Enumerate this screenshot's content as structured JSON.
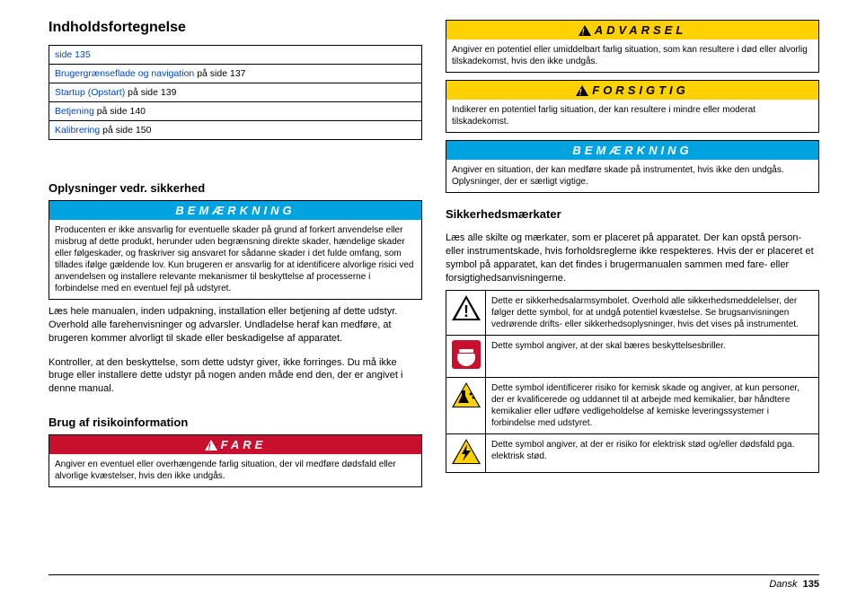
{
  "colors": {
    "notice": "#00a3e0",
    "danger": "#c8102e",
    "warning": "#ffd100",
    "caution": "#ffd100",
    "link": "#0047c2"
  },
  "toc": {
    "title": "Indholdsfortegnelse",
    "rows": [
      {
        "link": "",
        "rest": "side 135"
      },
      {
        "link": "Brugergrænseflade og navigation",
        "rest": " på side 137"
      },
      {
        "link": "Startup (Opstart)",
        "rest": " på side 139"
      },
      {
        "link": "Betjening",
        "rest": " på side 140"
      },
      {
        "link": "Kalibrering",
        "rest": " på side 150"
      }
    ]
  },
  "safety_heading": "Oplysninger vedr. sikkerhed",
  "notice_label": "BEMÆRKNING",
  "notice_body": "Producenten er ikke ansvarlig for eventuelle skader på grund af forkert anvendelse eller misbrug af dette produkt, herunder uden begrænsning direkte skader, hændelige skader eller følgeskader, og fraskriver sig ansvaret for sådanne skader i det fulde omfang, som tillades ifølge gældende lov. Kun brugeren er ansvarlig for at identificere alvorlige risici ved anvendelsen og installere relevante mekanismer til beskyttelse af processerne i forbindelse med en eventuel fejl på udstyret.",
  "p1": "Læs hele manualen, inden udpakning, installation eller betjening af dette udstyr. Overhold alle farehenvisninger og advarsler. Undladelse heraf kan medføre, at brugeren kommer alvorligt til skade eller beskadigelse af apparatet.",
  "p2": "Kontroller, at den beskyttelse, som dette udstyr giver, ikke forringes. Du må ikke bruge eller installere dette udstyr på nogen anden måde end den, der er angivet i denne manual.",
  "risk_heading": "Brug af risikoinformation",
  "danger_label": "FARE",
  "danger_body": "Angiver en eventuel eller overhængende farlig situation, der vil medføre dødsfald eller alvorlige kvæstelser, hvis den ikke undgås.",
  "warning_label": "ADVARSEL",
  "warning_body": "Angiver en potentiel eller umiddelbart farlig situation, som kan resultere i død eller alvorlig tilskadekomst, hvis den ikke undgås.",
  "caution_label": "FORSIGTIG",
  "caution_body": "Indikerer en potentiel farlig situation, der kan resultere i mindre eller moderat tilskadekomst.",
  "notice2_body": "Angiver en situation, der kan medføre skade på instrumentet, hvis ikke den undgås. Oplysninger, der er særligt vigtige.",
  "labels_heading": "Sikkerhedsmærkater",
  "labels_intro": "Læs alle skilte og mærkater, som er placeret på apparatet. Der kan opstå person- eller instrumentskade, hvis forholdsreglerne ikke respekteres. Hvis der er placeret et symbol på apparatet, kan det findes i brugermanualen sammen med fare- eller forsigtighedsanvisningerne.",
  "symbols": [
    {
      "icon": "alert",
      "text": "Dette er sikkerhedsalarmsymbolet. Overhold alle sikkerhedsmeddelelser, der følger dette symbol, for at undgå potentiel kvæstelse. Se brugsanvisningen vedrørende drifts- eller sikkerhedsoplysninger, hvis det vises på instrumentet."
    },
    {
      "icon": "goggles",
      "text": "Dette symbol angiver, at der skal bæres beskyttelsesbriller."
    },
    {
      "icon": "chemical",
      "text": "Dette symbol identificerer risiko for kemisk skade og angiver, at kun personer, der er kvalificerede og uddannet til at arbejde med kemikalier, bør håndtere kemikalier eller udføre vedligeholdelse af kemiske leveringssystemer i forbindelse med udstyret."
    },
    {
      "icon": "shock",
      "text": "Dette symbol angiver, at der er risiko for elektrisk stød og/eller dødsfald pga. elektrisk stød."
    }
  ],
  "footer": {
    "lang": "Dansk",
    "page": "135"
  }
}
